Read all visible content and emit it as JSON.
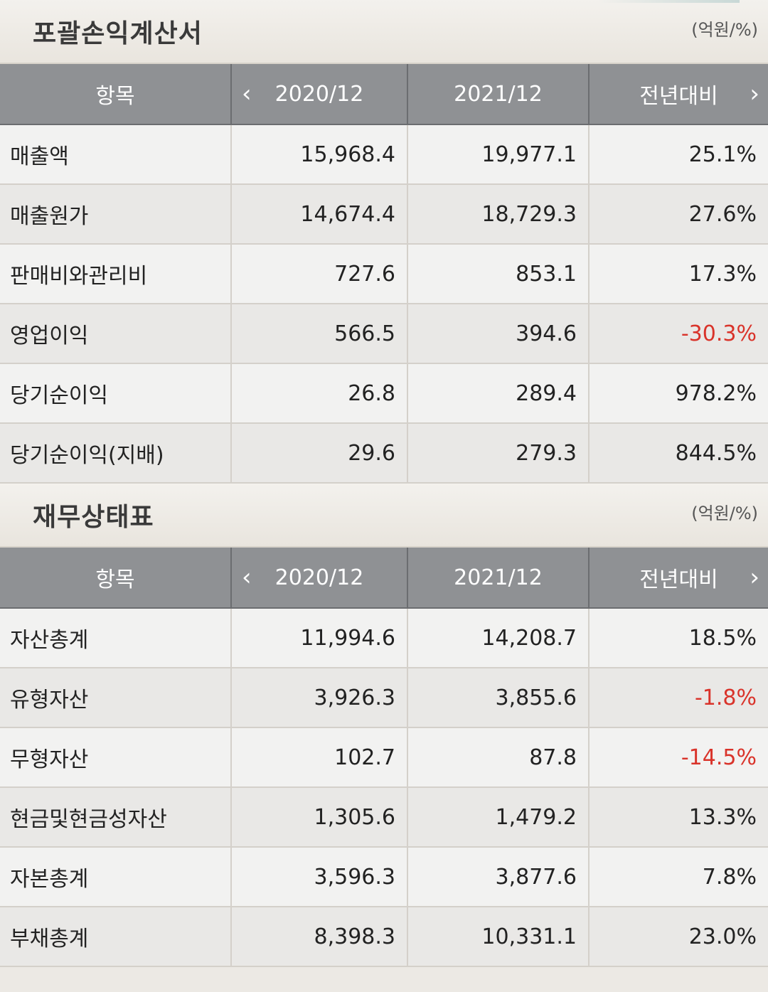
{
  "colors": {
    "header_bg": "#8f9194",
    "negative": "#d9332a"
  },
  "sections": [
    {
      "title": "포괄손익계산서",
      "unit": "(억원/%)",
      "headers": [
        "항목",
        "2020/12",
        "2021/12",
        "전년대비"
      ],
      "rows": [
        {
          "label": "매출액",
          "v2020": "15,968.4",
          "v2021": "19,977.1",
          "yoy": "25.1%"
        },
        {
          "label": "매출원가",
          "v2020": "14,674.4",
          "v2021": "18,729.3",
          "yoy": "27.6%"
        },
        {
          "label": "판매비와관리비",
          "v2020": "727.6",
          "v2021": "853.1",
          "yoy": "17.3%"
        },
        {
          "label": "영업이익",
          "v2020": "566.5",
          "v2021": "394.6",
          "yoy": "-30.3%"
        },
        {
          "label": "당기순이익",
          "v2020": "26.8",
          "v2021": "289.4",
          "yoy": "978.2%"
        },
        {
          "label": "당기순이익(지배)",
          "v2020": "29.6",
          "v2021": "279.3",
          "yoy": "844.5%"
        }
      ]
    },
    {
      "title": "재무상태표",
      "unit": "(억원/%)",
      "headers": [
        "항목",
        "2020/12",
        "2021/12",
        "전년대비"
      ],
      "rows": [
        {
          "label": "자산총계",
          "v2020": "11,994.6",
          "v2021": "14,208.7",
          "yoy": "18.5%"
        },
        {
          "label": "유형자산",
          "v2020": "3,926.3",
          "v2021": "3,855.6",
          "yoy": "-1.8%"
        },
        {
          "label": "무형자산",
          "v2020": "102.7",
          "v2021": "87.8",
          "yoy": "-14.5%"
        },
        {
          "label": "현금및현금성자산",
          "v2020": "1,305.6",
          "v2021": "1,479.2",
          "yoy": "13.3%"
        },
        {
          "label": "자본총계",
          "v2020": "3,596.3",
          "v2021": "3,877.6",
          "yoy": "7.8%"
        },
        {
          "label": "부채총계",
          "v2020": "8,398.3",
          "v2021": "10,331.1",
          "yoy": "23.0%"
        }
      ]
    }
  ]
}
